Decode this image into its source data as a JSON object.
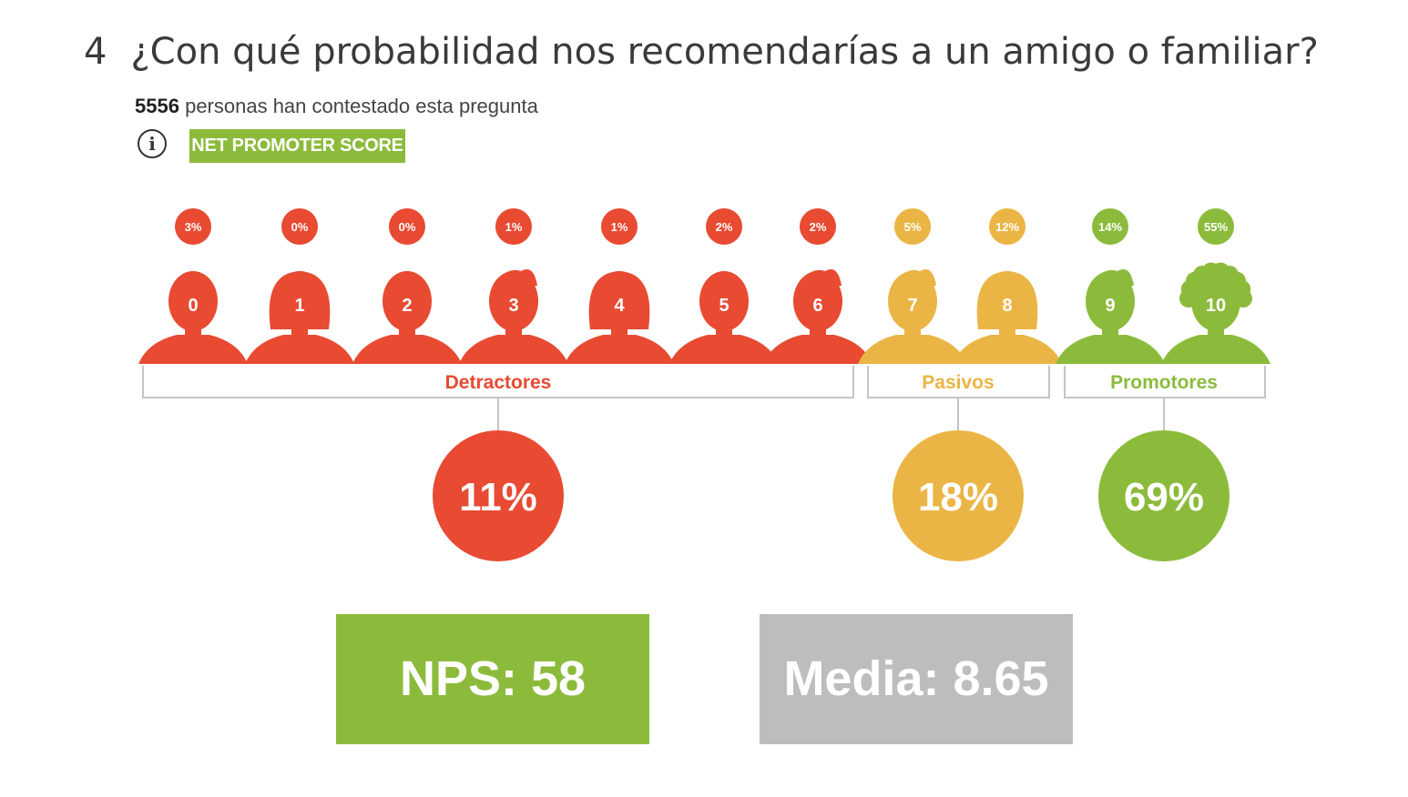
{
  "question": {
    "number": "4",
    "title": "¿Con qué probabilidad nos recomendarías a un amigo o familiar?"
  },
  "responses": {
    "count": "5556",
    "text": "personas han contestado esta pregunta"
  },
  "badge_label": "NET PROMOTER SCORE",
  "colors": {
    "detractor": "#e84a32",
    "passive": "#ebb545",
    "promoter": "#8cbb3c",
    "media": "#bdbdbd"
  },
  "chart_data": {
    "type": "bar",
    "categories": [
      "0",
      "1",
      "2",
      "3",
      "4",
      "5",
      "6",
      "7",
      "8",
      "9",
      "10"
    ],
    "values": [
      3,
      0,
      0,
      1,
      1,
      2,
      2,
      5,
      12,
      14,
      55
    ],
    "value_labels": [
      "3%",
      "0%",
      "0%",
      "1%",
      "1%",
      "2%",
      "2%",
      "5%",
      "12%",
      "14%",
      "55%"
    ],
    "groups": [
      {
        "name": "Detractores",
        "scores": [
          "0",
          "1",
          "2",
          "3",
          "4",
          "5",
          "6"
        ],
        "value": 11,
        "label": "11%",
        "color": "#e84a32"
      },
      {
        "name": "Pasivos",
        "scores": [
          "7",
          "8"
        ],
        "value": 18,
        "label": "18%",
        "color": "#ebb545"
      },
      {
        "name": "Promotores",
        "scores": [
          "9",
          "10"
        ],
        "value": 69,
        "label": "69%",
        "color": "#8cbb3c"
      }
    ]
  },
  "summary": {
    "nps": "NPS: 58",
    "media": "Media: 8.65"
  }
}
